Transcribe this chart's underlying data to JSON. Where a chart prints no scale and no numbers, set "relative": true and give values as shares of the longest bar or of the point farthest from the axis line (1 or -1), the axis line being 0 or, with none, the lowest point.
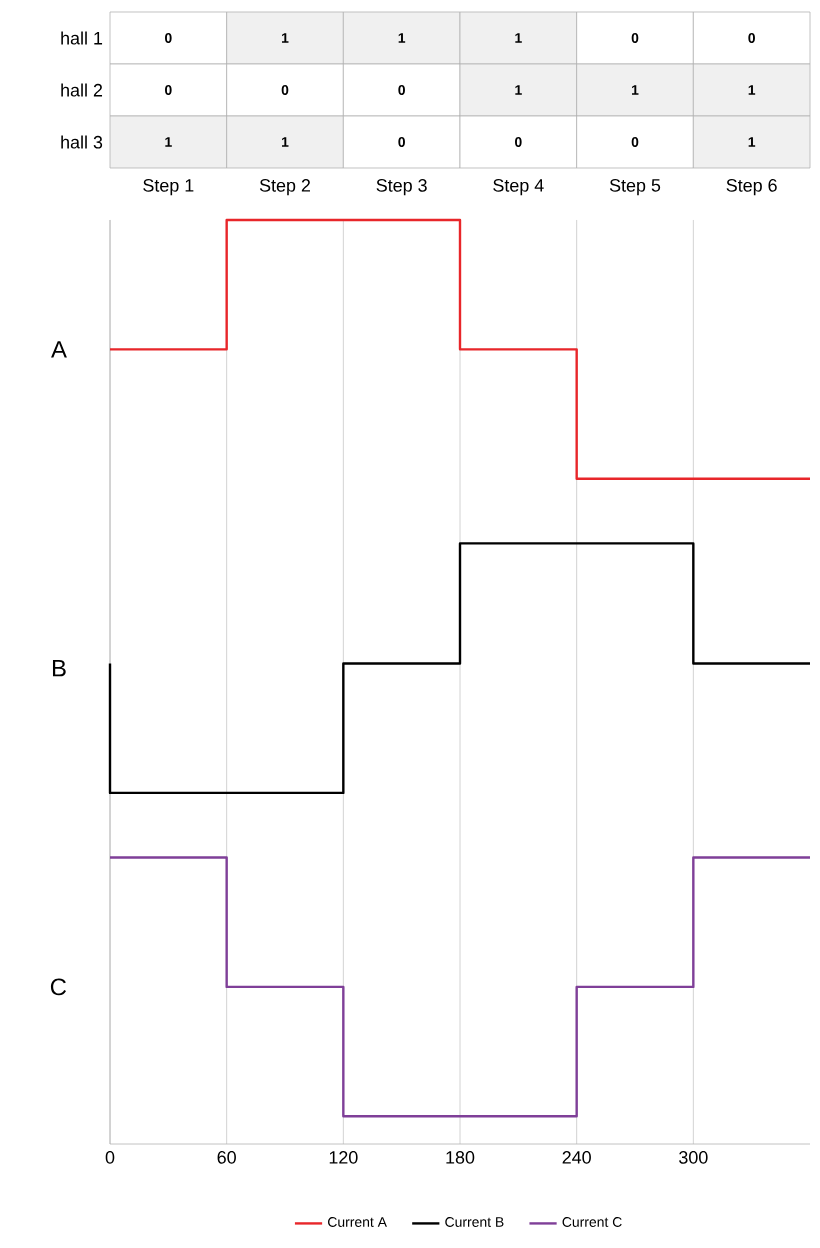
{
  "chart_data": [
    {
      "type": "heatmap",
      "categories": [
        "Step 1",
        "Step 2",
        "Step 3",
        "Step 4",
        "Step 5",
        "Step 6"
      ],
      "y_categories": [
        "hall 1",
        "hall 2",
        "hall 3"
      ],
      "cells": [
        [
          0,
          1,
          1,
          1,
          0,
          0
        ],
        [
          0,
          0,
          0,
          1,
          1,
          1
        ],
        [
          1,
          1,
          0,
          0,
          0,
          1
        ]
      ],
      "cell_labels": [
        [
          "0",
          "1",
          "1",
          "1",
          "0",
          "0"
        ],
        [
          "0",
          "0",
          "0",
          "1",
          "1",
          "1"
        ],
        [
          "1",
          "1",
          "0",
          "0",
          "0",
          "1"
        ]
      ]
    },
    {
      "type": "step",
      "relative": true,
      "xlim": [
        0,
        360
      ],
      "xticks": [
        0,
        60,
        120,
        180,
        240,
        300
      ],
      "grid": "x",
      "legend": "bottom",
      "annotations": [
        "A",
        "B",
        "C"
      ],
      "series": [
        {
          "name": "Current A",
          "color": "#e8262a",
          "x": [
            0,
            60,
            120,
            180,
            240,
            300,
            360
          ],
          "values": [
            0.86,
            1,
            1,
            0.86,
            0.72,
            0.72,
            0.72
          ]
        },
        {
          "name": "Current B",
          "color": "#000000",
          "x": [
            0,
            0,
            60,
            120,
            180,
            240,
            300,
            360
          ],
          "values": [
            0.52,
            0.38,
            0.38,
            0.52,
            0.65,
            0.65,
            0.52,
            0.52
          ]
        },
        {
          "name": "Current C",
          "color": "#7f3f98",
          "x": [
            0,
            60,
            120,
            180,
            240,
            300,
            360
          ],
          "values": [
            0.31,
            0.17,
            0.03,
            0.03,
            0.17,
            0.31,
            0.31
          ]
        }
      ]
    }
  ]
}
